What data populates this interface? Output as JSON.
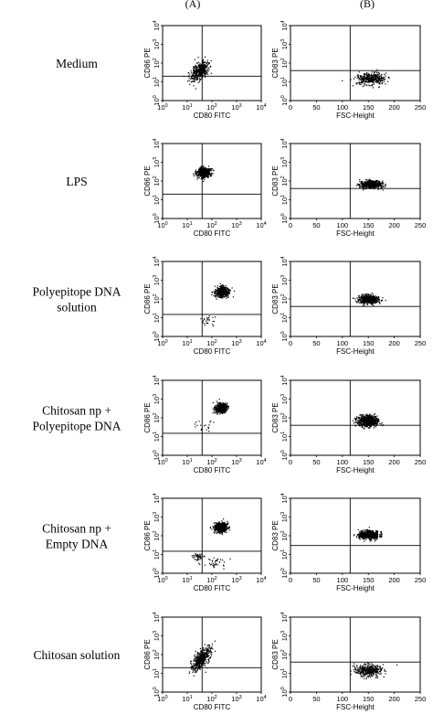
{
  "column_labels": [
    "(A)",
    "(B)"
  ],
  "row_labels": [
    [
      "Medium"
    ],
    [
      "LPS"
    ],
    [
      "Polyepitope DNA",
      "solution"
    ],
    [
      "Chitosan np +",
      "Polyepitope DNA"
    ],
    [
      "Chitosan np +",
      "Empty DNA"
    ],
    [
      "Chitosan solution"
    ]
  ],
  "colors": {
    "points": "#000000",
    "frame": "#000000",
    "background": "#ffffff"
  },
  "chart_data": [
    {
      "type": "scatter",
      "panel": "A",
      "row": "Medium",
      "xlabel": "CD80 FITC",
      "ylabel": "CD86 PE",
      "xscale": "log",
      "yscale": "log",
      "xlim": [
        1,
        10000
      ],
      "ylim": [
        1,
        10000
      ],
      "x_ticks": [
        {
          "base": "10",
          "exp": "0"
        },
        {
          "base": "10",
          "exp": "1"
        },
        {
          "base": "10",
          "exp": "2"
        },
        {
          "base": "10",
          "exp": "3"
        },
        {
          "base": "10",
          "exp": "4"
        }
      ],
      "y_ticks": [
        {
          "base": "10",
          "exp": "0"
        },
        {
          "base": "10",
          "exp": "1"
        },
        {
          "base": "10",
          "exp": "2"
        },
        {
          "base": "10",
          "exp": "3"
        },
        {
          "base": "10",
          "exp": "4"
        }
      ],
      "quadrant_gate": {
        "x": 40,
        "y": 20
      },
      "populations": [
        {
          "x": 30,
          "y": 40,
          "spread_x_decades": 0.35,
          "spread_y_decades": 0.6,
          "tilt": 0.8,
          "events": 420
        }
      ]
    },
    {
      "type": "scatter",
      "panel": "B",
      "row": "Medium",
      "xlabel": "FSC-Height",
      "ylabel": "CD83 PE",
      "xscale": "linear",
      "yscale": "log",
      "xlim": [
        0,
        250
      ],
      "ylim": [
        1,
        10000
      ],
      "x_ticks": [
        {
          "base": "0"
        },
        {
          "base": "50"
        },
        {
          "base": "100"
        },
        {
          "base": "150"
        },
        {
          "base": "200"
        },
        {
          "base": "250"
        }
      ],
      "y_ticks": [
        {
          "base": "10",
          "exp": "0"
        },
        {
          "base": "10",
          "exp": "1"
        },
        {
          "base": "10",
          "exp": "2"
        },
        {
          "base": "10",
          "exp": "3"
        },
        {
          "base": "10",
          "exp": "4"
        }
      ],
      "quadrant_gate": {
        "x": 115,
        "y": 40
      },
      "populations": [
        {
          "x": 155,
          "y": 15,
          "spread_x": 20,
          "spread_y_decades": 0.35,
          "events": 380
        }
      ]
    },
    {
      "type": "scatter",
      "panel": "A",
      "row": "LPS",
      "xlabel": "CD80 FITC",
      "ylabel": "CD86 PE",
      "xscale": "log",
      "yscale": "log",
      "xlim": [
        1,
        10000
      ],
      "ylim": [
        1,
        10000
      ],
      "x_ticks": [
        {
          "base": "10",
          "exp": "0"
        },
        {
          "base": "10",
          "exp": "1"
        },
        {
          "base": "10",
          "exp": "2"
        },
        {
          "base": "10",
          "exp": "3"
        },
        {
          "base": "10",
          "exp": "4"
        }
      ],
      "y_ticks": [
        {
          "base": "10",
          "exp": "0"
        },
        {
          "base": "10",
          "exp": "1"
        },
        {
          "base": "10",
          "exp": "2"
        },
        {
          "base": "10",
          "exp": "3"
        },
        {
          "base": "10",
          "exp": "4"
        }
      ],
      "quadrant_gate": {
        "x": 40,
        "y": 20
      },
      "populations": [
        {
          "x": 45,
          "y": 300,
          "spread_x_decades": 0.3,
          "spread_y_decades": 0.28,
          "tilt": 0.2,
          "events": 520
        }
      ]
    },
    {
      "type": "scatter",
      "panel": "B",
      "row": "LPS",
      "xlabel": "FSC-Height",
      "ylabel": "CD83 PE",
      "xscale": "linear",
      "yscale": "log",
      "xlim": [
        0,
        250
      ],
      "ylim": [
        1,
        10000
      ],
      "x_ticks": [
        {
          "base": "0"
        },
        {
          "base": "50"
        },
        {
          "base": "100"
        },
        {
          "base": "150"
        },
        {
          "base": "200"
        },
        {
          "base": "250"
        }
      ],
      "y_ticks": [
        {
          "base": "10",
          "exp": "0"
        },
        {
          "base": "10",
          "exp": "1"
        },
        {
          "base": "10",
          "exp": "2"
        },
        {
          "base": "10",
          "exp": "3"
        },
        {
          "base": "10",
          "exp": "4"
        }
      ],
      "quadrant_gate": {
        "x": 115,
        "y": 40
      },
      "populations": [
        {
          "x": 155,
          "y": 70,
          "spread_x": 15,
          "spread_y_decades": 0.2,
          "events": 620
        }
      ]
    },
    {
      "type": "scatter",
      "panel": "A",
      "row": "Polyepitope DNA solution",
      "xlabel": "CD80 FITC",
      "ylabel": "CD86 PE",
      "xscale": "log",
      "yscale": "log",
      "xlim": [
        1,
        10000
      ],
      "ylim": [
        1,
        10000
      ],
      "x_ticks": [
        {
          "base": "10",
          "exp": "0"
        },
        {
          "base": "10",
          "exp": "1"
        },
        {
          "base": "10",
          "exp": "2"
        },
        {
          "base": "10",
          "exp": "3"
        },
        {
          "base": "10",
          "exp": "4"
        }
      ],
      "y_ticks": [
        {
          "base": "10",
          "exp": "0"
        },
        {
          "base": "10",
          "exp": "1"
        },
        {
          "base": "10",
          "exp": "2"
        },
        {
          "base": "10",
          "exp": "3"
        },
        {
          "base": "10",
          "exp": "4"
        }
      ],
      "quadrant_gate": {
        "x": 40,
        "y": 15
      },
      "populations": [
        {
          "x": 250,
          "y": 250,
          "spread_x_decades": 0.3,
          "spread_y_decades": 0.3,
          "tilt": 0.3,
          "events": 560
        },
        {
          "x": 60,
          "y": 8,
          "spread_x_decades": 0.4,
          "spread_y_decades": 0.35,
          "tilt": 0,
          "events": 25
        }
      ]
    },
    {
      "type": "scatter",
      "panel": "B",
      "row": "Polyepitope DNA solution",
      "xlabel": "FSC-Height",
      "ylabel": "CD83 PE",
      "xscale": "linear",
      "yscale": "log",
      "xlim": [
        0,
        250
      ],
      "ylim": [
        1,
        10000
      ],
      "x_ticks": [
        {
          "base": "0"
        },
        {
          "base": "50"
        },
        {
          "base": "100"
        },
        {
          "base": "150"
        },
        {
          "base": "200"
        },
        {
          "base": "250"
        }
      ],
      "y_ticks": [
        {
          "base": "10",
          "exp": "0"
        },
        {
          "base": "10",
          "exp": "1"
        },
        {
          "base": "10",
          "exp": "2"
        },
        {
          "base": "10",
          "exp": "3"
        },
        {
          "base": "10",
          "exp": "4"
        }
      ],
      "quadrant_gate": {
        "x": 115,
        "y": 40
      },
      "populations": [
        {
          "x": 150,
          "y": 100,
          "spread_x": 14,
          "spread_y_decades": 0.25,
          "events": 520
        }
      ]
    },
    {
      "type": "scatter",
      "panel": "A",
      "row": "Chitosan np + Polyepitope DNA",
      "xlabel": "CD80 FITC",
      "ylabel": "CD86 PE",
      "xscale": "log",
      "yscale": "log",
      "xlim": [
        1,
        10000
      ],
      "ylim": [
        1,
        10000
      ],
      "x_ticks": [
        {
          "base": "10",
          "exp": "0"
        },
        {
          "base": "10",
          "exp": "1"
        },
        {
          "base": "10",
          "exp": "2"
        },
        {
          "base": "10",
          "exp": "3"
        },
        {
          "base": "10",
          "exp": "4"
        }
      ],
      "y_ticks": [
        {
          "base": "10",
          "exp": "0"
        },
        {
          "base": "10",
          "exp": "1"
        },
        {
          "base": "10",
          "exp": "2"
        },
        {
          "base": "10",
          "exp": "3"
        },
        {
          "base": "10",
          "exp": "4"
        }
      ],
      "quadrant_gate": {
        "x": 40,
        "y": 15
      },
      "populations": [
        {
          "x": 220,
          "y": 350,
          "spread_x_decades": 0.25,
          "spread_y_decades": 0.25,
          "tilt": 0.2,
          "events": 560
        },
        {
          "x": 50,
          "y": 40,
          "spread_x_decades": 0.4,
          "spread_y_decades": 0.4,
          "tilt": 0,
          "events": 20
        }
      ]
    },
    {
      "type": "scatter",
      "panel": "B",
      "row": "Chitosan np + Polyepitope DNA",
      "xlabel": "FSC-Height",
      "ylabel": "CD83 PE",
      "xscale": "linear",
      "yscale": "log",
      "xlim": [
        0,
        250
      ],
      "ylim": [
        1,
        10000
      ],
      "x_ticks": [
        {
          "base": "0"
        },
        {
          "base": "50"
        },
        {
          "base": "100"
        },
        {
          "base": "150"
        },
        {
          "base": "200"
        },
        {
          "base": "250"
        }
      ],
      "y_ticks": [
        {
          "base": "10",
          "exp": "0"
        },
        {
          "base": "10",
          "exp": "1"
        },
        {
          "base": "10",
          "exp": "2"
        },
        {
          "base": "10",
          "exp": "3"
        },
        {
          "base": "10",
          "exp": "4"
        }
      ],
      "quadrant_gate": {
        "x": 115,
        "y": 40
      },
      "populations": [
        {
          "x": 148,
          "y": 70,
          "spread_x": 14,
          "spread_y_decades": 0.35,
          "events": 620
        }
      ]
    },
    {
      "type": "scatter",
      "panel": "A",
      "row": "Chitosan np + Empty DNA",
      "xlabel": "CD80 FITC",
      "ylabel": "CD86 PE",
      "xscale": "log",
      "yscale": "log",
      "xlim": [
        1,
        10000
      ],
      "ylim": [
        1,
        10000
      ],
      "x_ticks": [
        {
          "base": "10",
          "exp": "0"
        },
        {
          "base": "10",
          "exp": "1"
        },
        {
          "base": "10",
          "exp": "2"
        },
        {
          "base": "10",
          "exp": "3"
        },
        {
          "base": "10",
          "exp": "4"
        }
      ],
      "y_ticks": [
        {
          "base": "10",
          "exp": "0"
        },
        {
          "base": "10",
          "exp": "1"
        },
        {
          "base": "10",
          "exp": "2"
        },
        {
          "base": "10",
          "exp": "3"
        },
        {
          "base": "10",
          "exp": "4"
        }
      ],
      "quadrant_gate": {
        "x": 40,
        "y": 15
      },
      "populations": [
        {
          "x": 220,
          "y": 300,
          "spread_x_decades": 0.28,
          "spread_y_decades": 0.28,
          "tilt": 0.3,
          "events": 520
        },
        {
          "x": 25,
          "y": 8,
          "spread_x_decades": 0.25,
          "spread_y_decades": 0.3,
          "tilt": 0,
          "events": 45
        },
        {
          "x": 120,
          "y": 4,
          "spread_x_decades": 0.45,
          "spread_y_decades": 0.35,
          "tilt": -0.3,
          "events": 35
        }
      ]
    },
    {
      "type": "scatter",
      "panel": "B",
      "row": "Chitosan np + Empty DNA",
      "xlabel": "FSC-Height",
      "ylabel": "CD83 PE",
      "xscale": "linear",
      "yscale": "log",
      "xlim": [
        0,
        250
      ],
      "ylim": [
        1,
        10000
      ],
      "x_ticks": [
        {
          "base": "0"
        },
        {
          "base": "50"
        },
        {
          "base": "100"
        },
        {
          "base": "150"
        },
        {
          "base": "200"
        },
        {
          "base": "250"
        }
      ],
      "y_ticks": [
        {
          "base": "10",
          "exp": "0"
        },
        {
          "base": "10",
          "exp": "1"
        },
        {
          "base": "10",
          "exp": "2"
        },
        {
          "base": "10",
          "exp": "3"
        },
        {
          "base": "10",
          "exp": "4"
        }
      ],
      "quadrant_gate": {
        "x": 115,
        "y": 30
      },
      "populations": [
        {
          "x": 150,
          "y": 120,
          "spread_x": 14,
          "spread_y_decades": 0.25,
          "events": 560
        }
      ]
    },
    {
      "type": "scatter",
      "panel": "A",
      "row": "Chitosan solution",
      "xlabel": "CD80 FITC",
      "ylabel": "CD86 PE",
      "xscale": "log",
      "yscale": "log",
      "xlim": [
        1,
        10000
      ],
      "ylim": [
        1,
        10000
      ],
      "x_ticks": [
        {
          "base": "10",
          "exp": "0"
        },
        {
          "base": "10",
          "exp": "1"
        },
        {
          "base": "10",
          "exp": "2"
        },
        {
          "base": "10",
          "exp": "3"
        },
        {
          "base": "10",
          "exp": "4"
        }
      ],
      "y_ticks": [
        {
          "base": "10",
          "exp": "0"
        },
        {
          "base": "10",
          "exp": "1"
        },
        {
          "base": "10",
          "exp": "2"
        },
        {
          "base": "10",
          "exp": "3"
        },
        {
          "base": "10",
          "exp": "4"
        }
      ],
      "quadrant_gate": {
        "x": 40,
        "y": 20
      },
      "populations": [
        {
          "x": 35,
          "y": 60,
          "spread_x_decades": 0.32,
          "spread_y_decades": 0.65,
          "tilt": 0.9,
          "events": 480
        }
      ]
    },
    {
      "type": "scatter",
      "panel": "B",
      "row": "Chitosan solution",
      "xlabel": "FSC-Height",
      "ylabel": "CD83 PE",
      "xscale": "linear",
      "yscale": "log",
      "xlim": [
        0,
        250
      ],
      "ylim": [
        1,
        10000
      ],
      "x_ticks": [
        {
          "base": "0"
        },
        {
          "base": "50"
        },
        {
          "base": "100"
        },
        {
          "base": "150"
        },
        {
          "base": "200"
        },
        {
          "base": "250"
        }
      ],
      "y_ticks": [
        {
          "base": "10",
          "exp": "0"
        },
        {
          "base": "10",
          "exp": "1"
        },
        {
          "base": "10",
          "exp": "2"
        },
        {
          "base": "10",
          "exp": "3"
        },
        {
          "base": "10",
          "exp": "4"
        }
      ],
      "quadrant_gate": {
        "x": 115,
        "y": 40
      },
      "populations": [
        {
          "x": 150,
          "y": 15,
          "spread_x": 18,
          "spread_y_decades": 0.35,
          "events": 380
        }
      ]
    }
  ]
}
